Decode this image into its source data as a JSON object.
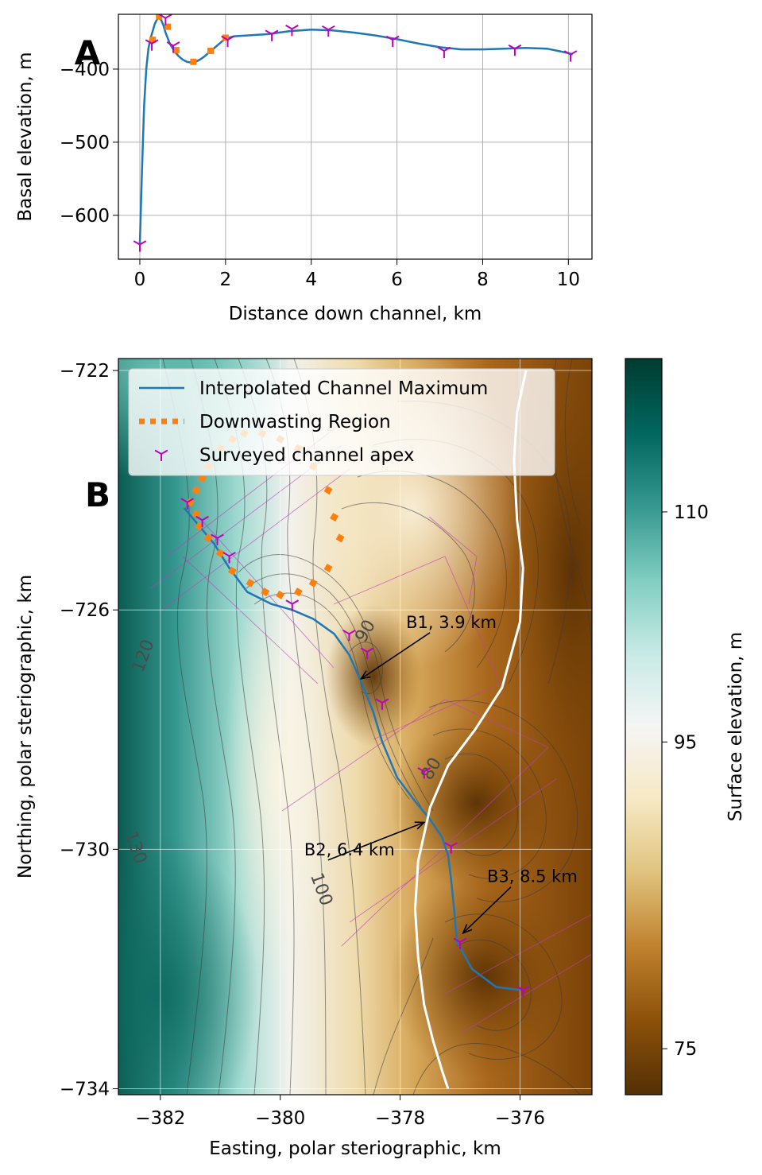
{
  "chart_data": [
    {
      "panel_label": "A",
      "type": "line",
      "xlabel": "Distance down channel, km",
      "ylabel": "Basal elevation, m",
      "xlim": [
        -0.5,
        10.55
      ],
      "ylim": [
        -660,
        -325
      ],
      "xticks": [
        0,
        2,
        4,
        6,
        8,
        10
      ],
      "yticks": [
        -400,
        -500,
        -600
      ],
      "grid": true,
      "series": [
        {
          "name": "Interpolated Channel Maximum",
          "color": "#1f77b4",
          "style": "solid",
          "x": [
            0.0,
            0.05,
            0.1,
            0.15,
            0.2,
            0.25,
            0.3,
            0.35,
            0.4,
            0.45,
            0.5,
            0.55,
            0.6,
            0.7,
            0.8,
            0.9,
            1.0,
            1.1,
            1.2,
            1.3,
            1.4,
            1.5,
            1.6,
            1.7,
            1.8,
            1.9,
            2.0,
            2.2,
            2.5,
            3.0,
            3.5,
            4.0,
            4.5,
            5.0,
            5.5,
            6.0,
            6.5,
            7.0,
            7.5,
            8.0,
            8.5,
            9.0,
            9.5,
            10.0,
            10.1
          ],
          "y": [
            -640,
            -540,
            -450,
            -400,
            -372,
            -358,
            -348,
            -338,
            -332,
            -330,
            -333,
            -340,
            -350,
            -365,
            -375,
            -382,
            -387,
            -390,
            -391,
            -390,
            -387,
            -383,
            -378,
            -373,
            -368,
            -363,
            -358,
            -355,
            -354,
            -352,
            -348,
            -346,
            -347,
            -350,
            -354,
            -359,
            -365,
            -370,
            -373,
            -373,
            -372,
            -371,
            -372,
            -378,
            -380
          ]
        },
        {
          "name": "Downwasting Region",
          "color": "#ff7f0e",
          "style": "dotted",
          "x": [
            0.3,
            0.45,
            0.65,
            0.85,
            1.25,
            1.65,
            2.0
          ],
          "y": [
            -360,
            -328,
            -342,
            -374,
            -390,
            -375,
            -357
          ]
        },
        {
          "name": "Surveyed channel apex",
          "color": "#bf00bf",
          "style": "marker",
          "x": [
            0.0,
            0.28,
            0.6,
            0.78,
            2.05,
            3.08,
            3.55,
            4.4,
            5.9,
            7.1,
            8.75,
            10.05
          ],
          "y": [
            -640,
            -365,
            -330,
            -368,
            -360,
            -352,
            -345,
            -346,
            -360,
            -375,
            -372,
            -380
          ]
        }
      ]
    },
    {
      "panel_label": "B",
      "type": "contour map",
      "xlabel": "Easting, polar steriographic, km",
      "ylabel": "Northing, polar steriographic, km",
      "xlim": [
        -382.7,
        -374.8
      ],
      "ylim": [
        -734.1,
        -721.8
      ],
      "xticks": [
        -382,
        -380,
        -378,
        -376
      ],
      "yticks": [
        -722,
        -726,
        -730,
        -734
      ],
      "grid": true,
      "colorbar": {
        "label": "Surface elevation, m",
        "ticks": [
          110,
          95,
          75
        ],
        "range": [
          72,
          120
        ],
        "colormap": "BrBG"
      },
      "contour_labels": [
        {
          "text": "120",
          "x": -382.2,
          "y": -726.8,
          "rotation": -70
        },
        {
          "text": "130",
          "x": -382.5,
          "y": -730.0,
          "rotation": 70
        },
        {
          "text": "100",
          "x": -379.4,
          "y": -730.7,
          "rotation": 70
        },
        {
          "text": "90",
          "x": -378.5,
          "y": -726.4,
          "rotation": -60
        },
        {
          "text": "80",
          "x": -377.4,
          "y": -728.7,
          "rotation": -60
        }
      ],
      "legend": {
        "position": "top-left",
        "entries": [
          "Interpolated Channel Maximum",
          "Downwasting Region",
          "Surveyed channel apex"
        ]
      },
      "series": [
        {
          "name": "Interpolated Channel Maximum",
          "color": "#1f77b4",
          "x": [
            -381.6,
            -381.35,
            -381.1,
            -380.85,
            -380.55,
            -380.15,
            -379.8,
            -379.45,
            -379.1,
            -378.85,
            -378.65,
            -378.45,
            -378.3,
            -378.05,
            -377.75,
            -377.5,
            -377.3,
            -377.2,
            -377.15,
            -377.1,
            -377.05,
            -376.8,
            -376.4,
            -376.0
          ],
          "y": [
            -724.3,
            -724.6,
            -724.9,
            -725.3,
            -725.7,
            -725.9,
            -726.0,
            -726.15,
            -726.4,
            -726.75,
            -727.2,
            -727.7,
            -728.2,
            -728.8,
            -729.2,
            -729.5,
            -729.8,
            -730.1,
            -730.5,
            -731.0,
            -731.55,
            -732.0,
            -732.3,
            -732.35
          ]
        },
        {
          "name": "Downwasting Region",
          "color": "#ff7f0e",
          "x": [
            -381.4,
            -381.3,
            -381.2,
            -381.0,
            -380.8,
            -380.6,
            -380.3,
            -380.0,
            -379.7,
            -379.45,
            -379.2,
            -379.1,
            -379.0,
            -379.2,
            -379.45,
            -379.7,
            -380.0,
            -380.25,
            -380.5,
            -380.8,
            -381.0,
            -381.2,
            -381.35,
            -381.4,
            -381.5
          ],
          "y": [
            -724.0,
            -723.8,
            -723.6,
            -723.3,
            -723.15,
            -723.05,
            -723.05,
            -723.15,
            -723.3,
            -723.6,
            -724.0,
            -724.45,
            -724.8,
            -725.3,
            -725.55,
            -725.7,
            -725.75,
            -725.7,
            -725.55,
            -725.35,
            -725.05,
            -724.8,
            -724.6,
            -724.4,
            -724.2
          ]
        },
        {
          "name": "Surveyed channel apex",
          "color": "#bf00bf",
          "x": [
            -381.55,
            -381.3,
            -381.05,
            -380.85,
            -379.8,
            -378.85,
            -378.55,
            -378.3,
            -377.6,
            -377.15,
            -377.0,
            -375.95
          ],
          "y": [
            -724.2,
            -724.5,
            -724.8,
            -725.1,
            -725.9,
            -726.4,
            -726.7,
            -727.55,
            -728.7,
            -729.95,
            -731.55,
            -732.35
          ]
        },
        {
          "name": "grounding line",
          "color": "#ffffff",
          "x": [
            -375.9,
            -376.05,
            -376.1,
            -376.05,
            -375.95,
            -376.0,
            -376.3,
            -376.75,
            -377.2,
            -377.5,
            -377.7,
            -377.75,
            -377.7,
            -377.6,
            -377.45,
            -377.3,
            -377.2
          ],
          "y": [
            -722.0,
            -722.7,
            -723.5,
            -724.5,
            -725.3,
            -726.2,
            -727.3,
            -728.0,
            -728.6,
            -729.3,
            -730.2,
            -731.0,
            -731.8,
            -732.6,
            -733.2,
            -733.7,
            -734.0
          ]
        }
      ],
      "annotations": [
        {
          "text": "B1, 3.9 km",
          "text_x": -377.9,
          "text_y": -726.3,
          "arrow_to_x": -378.65,
          "arrow_to_y": -727.15
        },
        {
          "text": "B2, 6.4 km",
          "text_x": -379.6,
          "text_y": -730.1,
          "arrow_to_x": -377.6,
          "arrow_to_y": -729.55
        },
        {
          "text": "B3, 8.5 km",
          "text_x": -376.55,
          "text_y": -730.55,
          "arrow_to_x": -376.95,
          "arrow_to_y": -731.4
        }
      ]
    }
  ]
}
